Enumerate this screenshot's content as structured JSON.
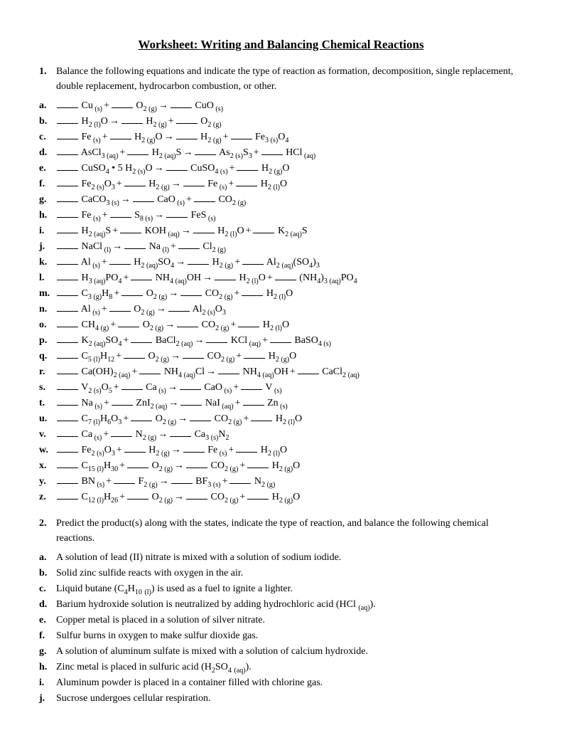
{
  "title": "Worksheet: Writing and Balancing Chemical Reactions",
  "q1": {
    "num": "1.",
    "text": "Balance the following equations and indicate the type of reaction as formation, decomposition, single replacement, double replacement, hydrocarbon combustion, or other.",
    "items": [
      {
        "label": "a.",
        "terms": [
          "Cu||s",
          "+",
          "O|2|g",
          "→",
          "CuO||s"
        ]
      },
      {
        "label": "b.",
        "terms": [
          "H|2|l",
          "O||",
          "→",
          "H|2|g",
          "+",
          "O|2|g"
        ]
      },
      {
        "label": "c.",
        "terms": [
          "Fe||s",
          "+",
          "H|2|g",
          "O||",
          "→",
          "H|2|g",
          "+",
          "Fe|3|s",
          "O|4|"
        ]
      },
      {
        "label": "d.",
        "terms": [
          "AsCl|3|aq",
          "+",
          "H|2|aq",
          "S||",
          "→",
          "As|2|s",
          "S|3|",
          "+",
          "HCl||aq"
        ]
      },
      {
        "label": "e.",
        "terms": [
          "CuSO|4|",
          "• 5 H|2|s",
          "O||",
          "→",
          "CuSO|4|s",
          "+",
          "H|2|g",
          "O||"
        ]
      },
      {
        "label": "f.",
        "terms": [
          "Fe|2|s",
          "O|3|",
          "+",
          "H|2|g",
          "→",
          "Fe||s",
          "+",
          "H|2|l",
          "O||"
        ]
      },
      {
        "label": "g.",
        "terms": [
          "CaCO|3|s",
          "→",
          "CaO||s",
          "+",
          "CO|2|g"
        ]
      },
      {
        "label": "h.",
        "terms": [
          "Fe||s",
          "+",
          "S|8|s",
          "→",
          "FeS||s"
        ]
      },
      {
        "label": "i.",
        "terms": [
          "H|2|aq",
          "S||",
          "+",
          "KOH||aq",
          "→",
          "H|2|l",
          "O||",
          "+",
          "K|2|aq",
          "S||"
        ]
      },
      {
        "label": "j.",
        "terms": [
          "NaCl||l",
          "→",
          "Na||l",
          "+",
          "Cl|2|g"
        ]
      },
      {
        "label": "k.",
        "terms": [
          "Al||s",
          "+",
          "H|2|aq",
          "SO|4|",
          "→",
          "H|2|g",
          "+",
          "Al|2|aq",
          "(SO|4|",
          ")|3|"
        ]
      },
      {
        "label": "l.",
        "terms": [
          "H|3|aq",
          "PO|4|",
          "+",
          "NH|4|aq",
          "OH||",
          "→",
          "H|2|l",
          "O||",
          "+",
          "(NH|4|",
          ")|3|aq",
          "PO|4|"
        ]
      },
      {
        "label": "m.",
        "terms": [
          "C|3|g",
          "H|8|",
          "+",
          "O|2|g",
          "→",
          "CO|2|g",
          "+",
          "H|2|l",
          "O||"
        ]
      },
      {
        "label": "n.",
        "terms": [
          "Al||s",
          "+",
          "O|2|g",
          "→",
          "Al|2|s",
          "O|3|"
        ]
      },
      {
        "label": "o.",
        "terms": [
          "CH|4|g",
          "+",
          "O|2|g",
          "→",
          "CO|2|g",
          "+",
          "H|2|l",
          "O||"
        ]
      },
      {
        "label": "p.",
        "terms": [
          "K|2|aq",
          "SO|4|",
          "+",
          "BaCl|2|aq",
          "→",
          "KCl||aq",
          "+",
          "BaSO|4|s"
        ]
      },
      {
        "label": "q.",
        "terms": [
          "C|5|l",
          "H|12|",
          "+",
          "O|2|g",
          "→",
          "CO|2|g",
          "+",
          "H|2|g",
          "O||"
        ]
      },
      {
        "label": "r.",
        "terms": [
          "Ca(OH)|2|aq",
          "+",
          "NH|4|aq",
          "Cl||",
          "→",
          "NH|4|aq",
          "OH||",
          "+",
          "CaCl|2|aq"
        ]
      },
      {
        "label": "s.",
        "terms": [
          "V|2|s",
          "O|5|",
          "+",
          "Ca||s",
          "→",
          "CaO||s",
          "+",
          "V||s"
        ]
      },
      {
        "label": "t.",
        "terms": [
          "Na||s",
          "+",
          "ZnI|2|aq",
          "→",
          "NaI||aq",
          "+",
          "Zn||s"
        ]
      },
      {
        "label": "u.",
        "terms": [
          "C|7|l",
          "H|6|",
          "O|3|",
          "+",
          "O|2|g",
          "→",
          "CO|2|g",
          "+",
          "H|2|l",
          "O||"
        ]
      },
      {
        "label": "v.",
        "terms": [
          "Ca||s",
          "+",
          "N|2|g",
          "→",
          "Ca|3|s",
          "N|2|"
        ]
      },
      {
        "label": "w.",
        "terms": [
          "Fe|2|s",
          "O|3|",
          "+",
          "H|2|g",
          "→",
          "Fe||s",
          "+",
          "H|2|l",
          "O||"
        ]
      },
      {
        "label": "x.",
        "terms": [
          "C|15|l",
          "H|30|",
          "+",
          "O|2|g",
          "→",
          "CO|2|g",
          "+",
          "H|2|g",
          "O||"
        ]
      },
      {
        "label": "y.",
        "terms": [
          "BN||s",
          "+",
          "F|2|g",
          "→",
          "BF|3|s",
          "+",
          "N|2|g"
        ]
      },
      {
        "label": "z.",
        "terms": [
          "C|12|l",
          "H|26|",
          "+",
          "O|2|g",
          "→",
          "CO|2|g",
          "+",
          "H|2|g",
          "O||"
        ]
      }
    ]
  },
  "q2": {
    "num": "2.",
    "text": "Predict the product(s) along with the states, indicate the type of reaction, and balance the following chemical reactions.",
    "items": [
      {
        "label": "a.",
        "text": " A solution of lead (II) nitrate is mixed with a solution of sodium iodide."
      },
      {
        "label": "b.",
        "text": " Solid zinc sulfide reacts with oxygen in the air."
      },
      {
        "label": "c.",
        "text": " Liquid butane (C|4|H|10| |(l)|) is used as a fuel to ignite a lighter."
      },
      {
        "label": "d.",
        "text": " Barium hydroxide solution is neutralized by adding hydrochloric acid (HCl |(aq)|)."
      },
      {
        "label": "e.",
        "text": " Copper metal is placed in a solution of silver nitrate."
      },
      {
        "label": "f.",
        "text": " Sulfur burns in oxygen to make sulfur dioxide gas."
      },
      {
        "label": "g.",
        "text": " A solution of aluminum sulfate is mixed with a solution of calcium hydroxide."
      },
      {
        "label": "h.",
        "text": " Zinc metal is placed in sulfuric acid (H|2|SO|4| |(aq)|)."
      },
      {
        "label": "i.",
        "text": " Aluminum powder is placed in a container filled with chlorine gas."
      },
      {
        "label": "j.",
        "text": " Sucrose undergoes cellular respiration."
      }
    ]
  }
}
